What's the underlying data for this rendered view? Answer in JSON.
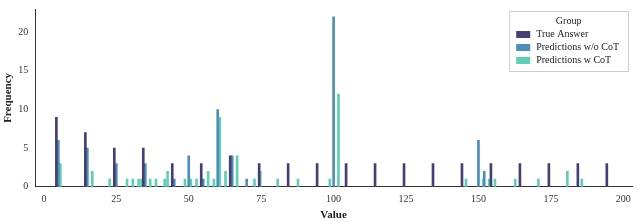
{
  "chart_data": {
    "type": "bar",
    "x_label": "Value",
    "y_label": "Frequency",
    "legend_title": "Group",
    "legend": "upper right",
    "grid": false,
    "xlim": [
      -3,
      203
    ],
    "xticks": [
      0,
      25,
      50,
      75,
      100,
      125,
      150,
      175,
      200
    ],
    "ylim": [
      0,
      23
    ],
    "yticks": [
      0,
      5,
      10,
      15,
      20
    ],
    "series": [
      {
        "name": "True Answer",
        "color": "#463e74",
        "x": [
          5,
          15,
          25,
          35,
          45,
          55,
          65,
          75,
          85,
          95,
          105,
          115,
          125,
          135,
          145,
          155,
          165,
          175,
          185,
          195
        ],
        "values": [
          9,
          7,
          5,
          5,
          3,
          3,
          4,
          3,
          3,
          3,
          3,
          3,
          3,
          3,
          3,
          3,
          3,
          3,
          3,
          3
        ]
      },
      {
        "name": "Predictions w/o CoT",
        "color": "#4d8fb8",
        "x": [
          5,
          15,
          25,
          35,
          45,
          50,
          55,
          60,
          65,
          70,
          100,
          150,
          152
        ],
        "values": [
          6,
          5,
          3,
          3,
          1,
          4,
          1,
          10,
          4,
          1,
          22,
          6,
          2
        ]
      },
      {
        "name": "Predictions w CoT",
        "color": "#5fcfb4",
        "x": [
          5,
          16,
          22,
          28,
          30,
          32,
          33,
          34,
          36,
          38,
          41,
          42,
          48,
          50,
          52,
          56,
          58,
          60,
          62,
          66,
          72,
          74,
          80,
          87,
          98,
          101,
          145,
          151,
          153,
          155,
          162,
          170,
          180,
          185
        ],
        "values": [
          3,
          2,
          1,
          1,
          1,
          1,
          1,
          1,
          1,
          1,
          1,
          2,
          1,
          1,
          1,
          2,
          1,
          9,
          2,
          4,
          1,
          2,
          1,
          1,
          1,
          12,
          1,
          1,
          1,
          1,
          1,
          1,
          2,
          1
        ]
      }
    ]
  }
}
